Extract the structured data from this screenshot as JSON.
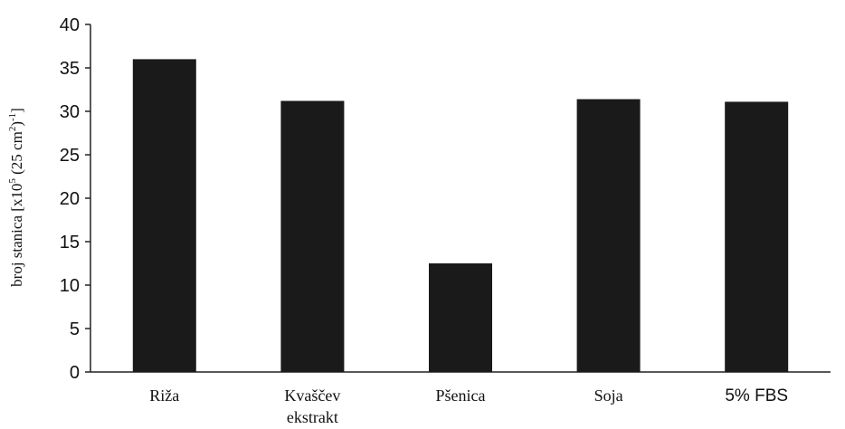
{
  "chart_data": {
    "type": "bar",
    "categories": [
      [
        "Riža"
      ],
      [
        "Kvaščev",
        "ekstrakt"
      ],
      [
        "Pšenica"
      ],
      [
        "Soja"
      ],
      [
        "5% FBS"
      ]
    ],
    "values": [
      36,
      31.2,
      12.5,
      31.4,
      31.1
    ],
    "ylabel_parts": {
      "main": "broj stanica [x10",
      "sup1": "5",
      "mid": " (25 cm",
      "sup2": "2",
      "mid2": ")",
      "sup3": "-1",
      "end": "]"
    },
    "ylim": [
      0,
      40
    ],
    "yticks": [
      "0",
      "5",
      "10",
      "15",
      "20",
      "25",
      "30",
      "35",
      "40"
    ],
    "bar_color": "#1a1a1a",
    "grid": false
  }
}
